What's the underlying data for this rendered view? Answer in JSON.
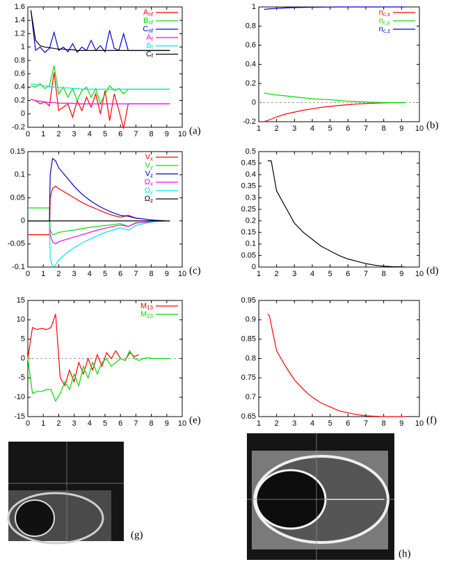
{
  "chart_data": [
    {
      "type": "line",
      "label": "(a)",
      "xlim": [
        0,
        10
      ],
      "xticks": [
        0,
        1,
        2,
        3,
        4,
        5,
        6,
        7,
        8,
        9,
        10
      ],
      "ylim": [
        -0.2,
        1.6
      ],
      "yticks": [
        -0.2,
        0,
        0.2,
        0.4,
        0.6,
        0.8,
        1,
        1.2,
        1.4,
        1.6
      ],
      "x": [
        0.2,
        0.5,
        0.8,
        1.1,
        1.4,
        1.7,
        2.0,
        2.3,
        2.6,
        2.9,
        3.2,
        3.5,
        3.8,
        4.1,
        4.4,
        4.7,
        5.0,
        5.3,
        5.6,
        5.9,
        6.2,
        6.5,
        6.8,
        7.1,
        7.4,
        7.7,
        8.0,
        8.3,
        8.6,
        8.9,
        9.2
      ],
      "legend": "upper right",
      "series": [
        {
          "name": "A",
          "subscript": "nf",
          "color": "#ff0000",
          "values": [
            0.22,
            0.2,
            0.15,
            0.18,
            0.12,
            0.62,
            0.05,
            0.1,
            0.15,
            -0.05,
            0.2,
            0.05,
            0.25,
            0.1,
            0.3,
            0.0,
            0.35,
            -0.1,
            0.3,
            0.05,
            -0.22,
            0.15,
            0.15,
            0.15,
            0.15,
            0.15,
            0.15,
            0.15,
            0.15,
            0.15,
            0.15
          ]
        },
        {
          "name": "B",
          "subscript": "nf",
          "color": "#00dd00",
          "values": [
            0.42,
            0.4,
            0.45,
            0.38,
            0.42,
            0.72,
            0.3,
            0.4,
            0.25,
            0.38,
            0.2,
            0.35,
            0.4,
            0.25,
            0.38,
            0.15,
            0.3,
            0.42,
            0.35,
            0.38,
            0.3,
            0.37,
            0.37,
            0.37,
            0.37,
            0.37,
            0.37,
            0.37,
            0.37,
            0.37,
            0.37
          ]
        },
        {
          "name": "C",
          "subscript": "nf",
          "color": "#0000cc",
          "values": [
            1.55,
            0.95,
            1.0,
            0.92,
            0.98,
            1.22,
            0.95,
            1.0,
            0.93,
            1.05,
            0.92,
            1.0,
            0.95,
            1.1,
            0.95,
            1.02,
            0.93,
            1.25,
            0.98,
            0.95,
            1.2,
            0.95,
            0.95,
            0.95,
            0.95,
            0.95,
            0.95,
            0.95,
            0.95,
            0.95,
            0.95
          ]
        },
        {
          "name": "A",
          "subscript": "f",
          "color": "#ff00ff",
          "values": [
            0.22,
            0.2,
            0.19,
            0.18,
            0.17,
            0.17,
            0.16,
            0.16,
            0.16,
            0.16,
            0.15,
            0.15,
            0.15,
            0.15,
            0.15,
            0.15,
            0.15,
            0.15,
            0.15,
            0.15,
            0.15,
            0.15,
            0.15,
            0.15,
            0.15,
            0.15,
            0.15,
            0.15,
            0.15,
            0.15,
            0.15
          ]
        },
        {
          "name": "B",
          "subscript": "f",
          "color": "#00e5e5",
          "values": [
            0.45,
            0.44,
            0.43,
            0.42,
            0.41,
            0.4,
            0.4,
            0.39,
            0.39,
            0.38,
            0.38,
            0.37,
            0.37,
            0.37,
            0.37,
            0.37,
            0.37,
            0.37,
            0.37,
            0.37,
            0.37,
            0.37,
            0.37,
            0.37,
            0.37,
            0.37,
            0.37,
            0.37,
            0.37,
            0.37,
            0.37
          ]
        },
        {
          "name": "C",
          "subscript": "f",
          "color": "#000000",
          "values": [
            1.55,
            1.1,
            1.02,
            1.0,
            0.99,
            0.98,
            0.97,
            0.97,
            0.96,
            0.96,
            0.95,
            0.95,
            0.95,
            0.95,
            0.95,
            0.95,
            0.95,
            0.95,
            0.95,
            0.95,
            0.95,
            0.95,
            0.95,
            0.95,
            0.95,
            0.95,
            0.95,
            0.95,
            0.95,
            0.95,
            0.95
          ]
        }
      ]
    },
    {
      "type": "line",
      "label": "(b)",
      "xlim": [
        1,
        10
      ],
      "xticks": [
        1,
        2,
        3,
        4,
        5,
        6,
        7,
        8,
        9,
        10
      ],
      "ylim": [
        -0.2,
        1
      ],
      "yticks": [
        -0.2,
        0,
        0.2,
        0.4,
        0.6,
        0.8,
        1
      ],
      "zero_line": true,
      "legend": "upper right",
      "x": [
        1.3,
        1.6,
        2,
        2.5,
        3,
        3.5,
        4,
        4.5,
        5,
        5.5,
        6,
        6.5,
        7,
        7.5,
        8,
        8.5,
        9,
        9.2
      ],
      "series": [
        {
          "name": "n",
          "subscript": "c,x",
          "color": "#ff0000",
          "values": [
            -0.2,
            -0.18,
            -0.15,
            -0.12,
            -0.1,
            -0.08,
            -0.065,
            -0.05,
            -0.04,
            -0.03,
            -0.022,
            -0.015,
            -0.01,
            -0.006,
            -0.003,
            -0.001,
            0,
            0
          ]
        },
        {
          "name": "n",
          "subscript": "c,y",
          "color": "#00dd00",
          "values": [
            0.1,
            0.09,
            0.08,
            0.07,
            0.06,
            0.05,
            0.04,
            0.035,
            0.03,
            0.022,
            0.015,
            0.01,
            0.006,
            0.003,
            0.001,
            0,
            0,
            0
          ]
        },
        {
          "name": "n",
          "subscript": "c,z",
          "color": "#0000cc",
          "values": [
            0.975,
            0.98,
            0.985,
            0.99,
            0.993,
            0.995,
            0.997,
            0.998,
            0.999,
            1,
            1,
            1,
            1,
            1,
            1,
            1,
            1,
            1
          ]
        }
      ]
    },
    {
      "type": "line",
      "label": "(c)",
      "xlim": [
        0,
        10
      ],
      "xticks": [
        0,
        1,
        2,
        3,
        4,
        5,
        6,
        7,
        8,
        9,
        10
      ],
      "ylim": [
        -0.1,
        0.15
      ],
      "yticks": [
        -0.1,
        -0.05,
        0,
        0.05,
        0.1,
        0.15
      ],
      "legend": "upper right",
      "x": [
        0,
        0.5,
        1,
        1.4,
        1.45,
        1.6,
        1.8,
        2,
        2.5,
        3,
        3.5,
        4,
        4.5,
        5,
        5.5,
        6,
        6.5,
        7,
        7.5,
        8,
        8.5,
        9,
        9.2
      ],
      "series": [
        {
          "name": "V",
          "subscript": "x",
          "color": "#ff0000",
          "values": [
            -0.03,
            -0.03,
            -0.03,
            -0.03,
            0.05,
            0.07,
            0.075,
            0.07,
            0.06,
            0.05,
            0.04,
            0.032,
            0.025,
            0.018,
            0.012,
            0.008,
            0.012,
            0.006,
            0.004,
            0.002,
            0.001,
            0,
            0
          ]
        },
        {
          "name": "V",
          "subscript": "y",
          "color": "#00dd00",
          "values": [
            0.028,
            0.028,
            0.028,
            0.028,
            -0.02,
            -0.03,
            -0.028,
            -0.025,
            -0.022,
            -0.02,
            -0.017,
            -0.014,
            -0.012,
            -0.01,
            -0.008,
            -0.006,
            -0.012,
            -0.004,
            -0.003,
            -0.002,
            -0.001,
            0,
            0
          ]
        },
        {
          "name": "V",
          "subscript": "z",
          "color": "#0000cc",
          "values": [
            0,
            0,
            0,
            0,
            0.1,
            0.135,
            0.13,
            0.115,
            0.095,
            0.075,
            0.058,
            0.045,
            0.034,
            0.025,
            0.018,
            0.012,
            0.01,
            0.006,
            0.004,
            0.002,
            0.001,
            0,
            0
          ]
        },
        {
          "name": "Ω",
          "subscript": "x",
          "color": "#ff00ff",
          "values": [
            0,
            0,
            0,
            0,
            -0.03,
            -0.045,
            -0.05,
            -0.045,
            -0.04,
            -0.035,
            -0.03,
            -0.025,
            -0.02,
            -0.016,
            -0.012,
            -0.009,
            -0.012,
            -0.005,
            -0.003,
            -0.002,
            -0.001,
            0,
            0
          ]
        },
        {
          "name": "Ω",
          "subscript": "y",
          "color": "#00e5e5",
          "values": [
            0,
            0,
            0,
            0,
            -0.08,
            -0.1,
            -0.095,
            -0.085,
            -0.07,
            -0.058,
            -0.048,
            -0.04,
            -0.032,
            -0.025,
            -0.02,
            -0.015,
            -0.02,
            -0.01,
            -0.006,
            -0.003,
            -0.001,
            0,
            0
          ]
        },
        {
          "name": "Ω",
          "subscript": "z",
          "color": "#000000",
          "values": [
            0,
            0,
            0,
            0,
            0,
            0,
            0,
            0,
            0,
            0,
            0,
            0,
            0,
            0,
            0,
            0,
            0,
            0,
            0,
            0,
            0,
            0,
            0
          ]
        }
      ]
    },
    {
      "type": "line",
      "label": "(d)",
      "xlim": [
        1,
        10
      ],
      "xticks": [
        1,
        2,
        3,
        4,
        5,
        6,
        7,
        8,
        9,
        10
      ],
      "ylim": [
        0,
        0.5
      ],
      "yticks": [
        0,
        0.05,
        0.1,
        0.15,
        0.2,
        0.25,
        0.3,
        0.35,
        0.4,
        0.45,
        0.5
      ],
      "color": "#000000",
      "x": [
        1.5,
        1.7,
        2,
        2.5,
        3,
        3.5,
        4,
        4.5,
        5,
        5.5,
        6,
        6.5,
        7,
        7.5,
        8,
        8.5,
        9,
        9.2
      ],
      "values": [
        0.46,
        0.46,
        0.33,
        0.26,
        0.19,
        0.15,
        0.12,
        0.09,
        0.07,
        0.05,
        0.035,
        0.025,
        0.015,
        0.008,
        0.004,
        0.002,
        0.001,
        0
      ]
    },
    {
      "type": "line",
      "label": "(e)",
      "xlim": [
        0,
        10
      ],
      "xticks": [
        0,
        1,
        2,
        3,
        4,
        5,
        6,
        7,
        8,
        9,
        10
      ],
      "ylim": [
        -15,
        15
      ],
      "yticks": [
        -15,
        -10,
        -5,
        0,
        5,
        10,
        15
      ],
      "zero_line": true,
      "legend": "upper right",
      "x": [
        0,
        0.3,
        0.6,
        0.9,
        1.2,
        1.5,
        1.8,
        2.1,
        2.4,
        2.7,
        3,
        3.3,
        3.6,
        3.9,
        4.2,
        4.5,
        4.8,
        5.1,
        5.4,
        5.7,
        6,
        6.3,
        6.6,
        6.9,
        7.2,
        7.5,
        7.8,
        8.1,
        8.4,
        8.7,
        9,
        9.2
      ],
      "series": [
        {
          "name": "M",
          "subscript": "13",
          "color": "#ff0000",
          "values": [
            0,
            8,
            7.5,
            7.8,
            7.5,
            8,
            11.5,
            -5,
            -7,
            -3,
            -6,
            -1,
            -4,
            0,
            -3,
            1,
            -2,
            1.5,
            0,
            2,
            0,
            -0.5,
            1.5,
            0.5,
            1,
            null,
            null,
            null,
            null,
            null,
            null,
            null
          ]
        },
        {
          "name": "M",
          "subscript": "23",
          "color": "#00dd00",
          "values": [
            0,
            -9,
            -8.5,
            -8.5,
            -8,
            -8,
            -11,
            -9,
            -6,
            -8,
            -4,
            -7,
            -2,
            -5,
            -1,
            -4,
            -1,
            0,
            -2,
            -1,
            0,
            -0.5,
            2,
            0,
            -0.5,
            0,
            0.2,
            0,
            0,
            0,
            0,
            0
          ]
        }
      ]
    },
    {
      "type": "line",
      "label": "(f)",
      "xlim": [
        1,
        10
      ],
      "xticks": [
        1,
        2,
        3,
        4,
        5,
        6,
        7,
        8,
        9,
        10
      ],
      "ylim": [
        0.65,
        0.95
      ],
      "yticks": [
        0.65,
        0.7,
        0.75,
        0.8,
        0.85,
        0.9,
        0.95
      ],
      "color": "#ff0000",
      "x": [
        1.5,
        1.6,
        2,
        2.5,
        3,
        3.5,
        4,
        4.5,
        5,
        5.5,
        6,
        6.5,
        7,
        7.5,
        8,
        9,
        9.2
      ],
      "values": [
        0.915,
        0.91,
        0.82,
        0.78,
        0.745,
        0.72,
        0.7,
        0.685,
        0.675,
        0.665,
        0.66,
        0.655,
        0.652,
        0.651,
        0.65,
        0.65,
        0.65
      ]
    }
  ],
  "images": [
    {
      "label": "(g)"
    },
    {
      "label": "(h)"
    }
  ]
}
